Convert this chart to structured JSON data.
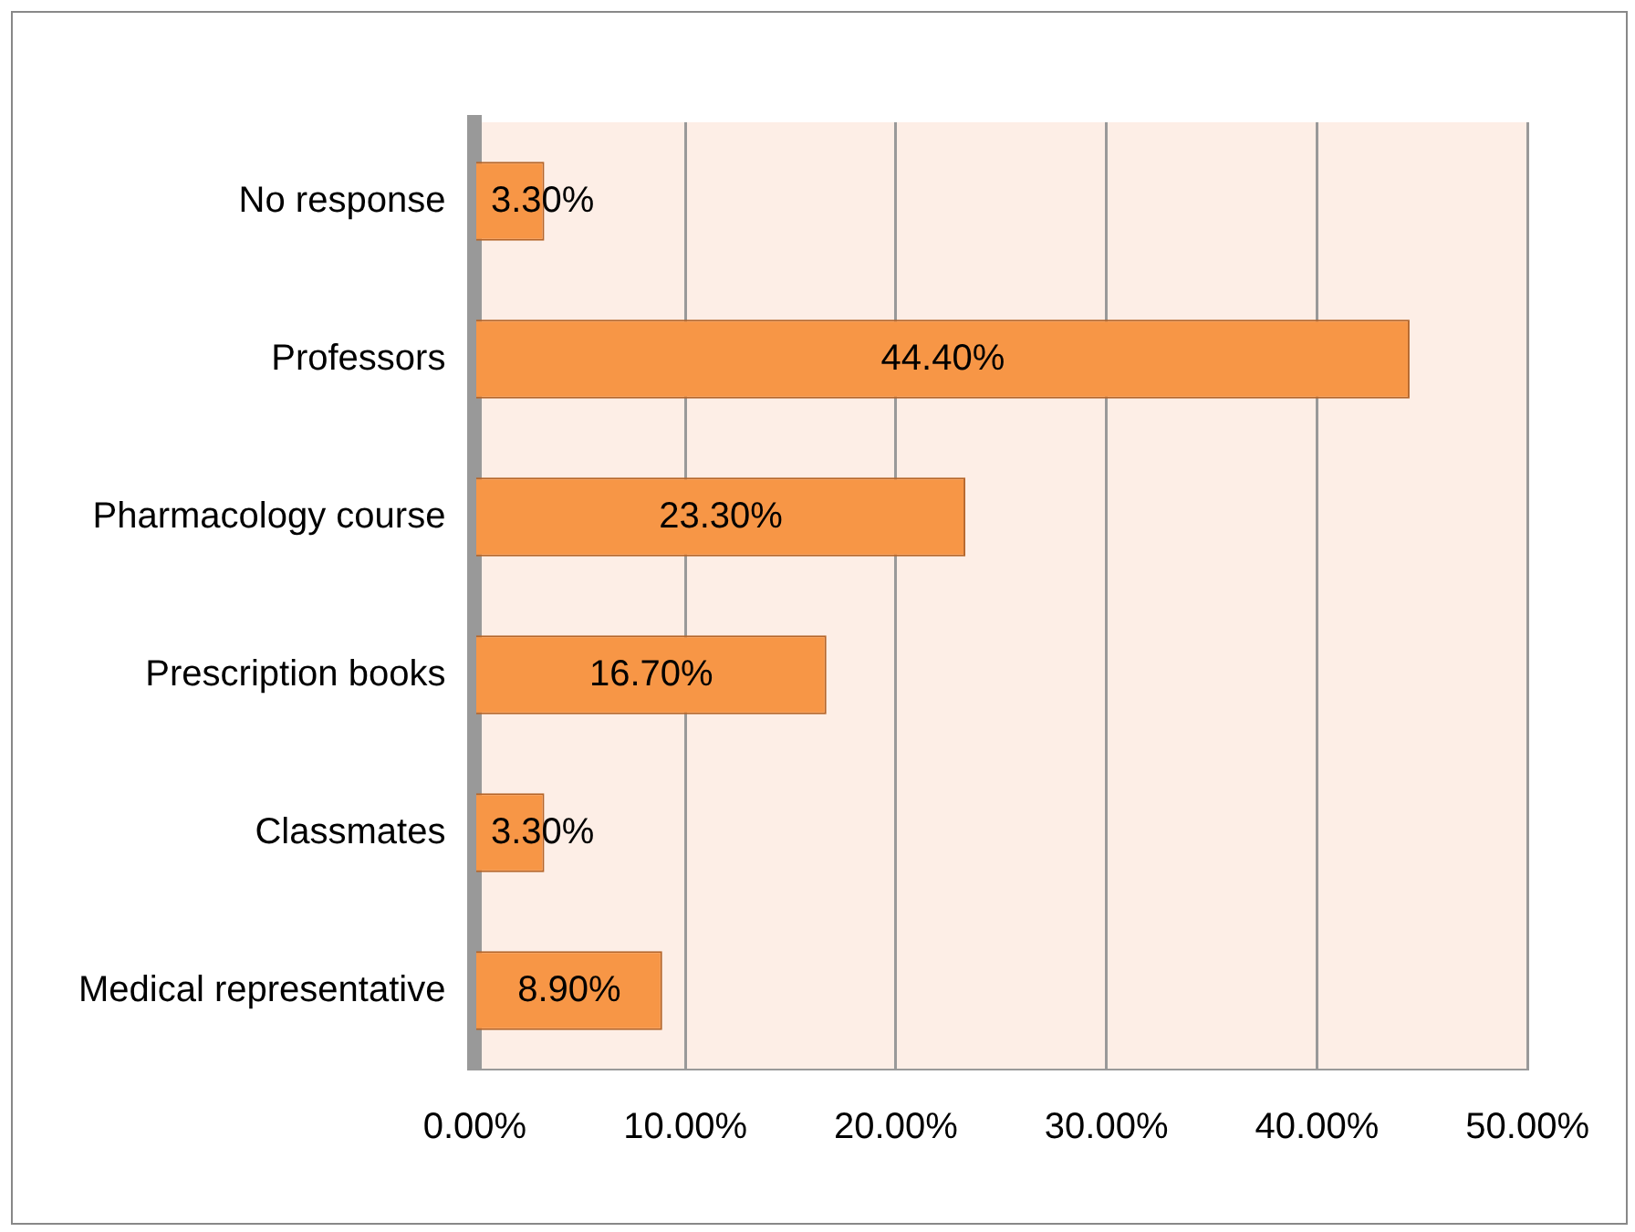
{
  "chart_data": {
    "type": "bar",
    "orientation": "horizontal",
    "categories": [
      "No response",
      "Professors",
      "Pharmacology course",
      "Prescription books",
      "Classmates",
      "Medical representative"
    ],
    "values": [
      3.3,
      44.4,
      23.3,
      16.7,
      3.3,
      8.9
    ],
    "value_labels": [
      "3.30%",
      "44.40%",
      "23.30%",
      "16.70%",
      "3.30%",
      "8.90%"
    ],
    "color": "#f79646",
    "xlim": [
      0,
      50
    ],
    "xticks": [
      {
        "value": 0,
        "label": "0.00%"
      },
      {
        "value": 10,
        "label": "10.00%"
      },
      {
        "value": 20,
        "label": "20.00%"
      },
      {
        "value": 30,
        "label": "30.00%"
      },
      {
        "value": 40,
        "label": "40.00%"
      },
      {
        "value": 50,
        "label": "50.00%"
      }
    ],
    "grid": "x"
  }
}
